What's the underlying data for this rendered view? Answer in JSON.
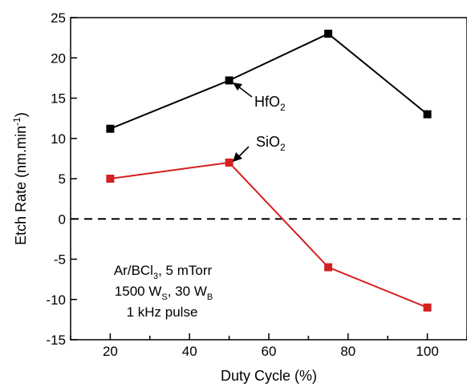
{
  "chart_data": {
    "type": "line",
    "xlabel": "Duty Cycle (%)",
    "ylabel_parts": [
      "Etch Rate (nm.min",
      "-1",
      ")"
    ],
    "xlim": [
      10,
      110
    ],
    "ylim": [
      -15,
      25
    ],
    "x_ticks": [
      20,
      40,
      60,
      80,
      100
    ],
    "y_ticks": [
      -15,
      -10,
      -5,
      0,
      5,
      10,
      15,
      20,
      25
    ],
    "grid": false,
    "series": [
      {
        "name_parts": [
          "HfO",
          "2"
        ],
        "color": "#000000",
        "marker": "square",
        "x": [
          20,
          50,
          75,
          100
        ],
        "y": [
          11.2,
          17.2,
          23.0,
          13.0
        ]
      },
      {
        "name_parts": [
          "SiO",
          "2"
        ],
        "color": "#d42020",
        "marker": "square",
        "x": [
          20,
          50,
          75,
          100
        ],
        "y": [
          5.0,
          7.0,
          -6.0,
          -11.0
        ]
      }
    ],
    "reference_line": {
      "y": 0,
      "style": "dashed",
      "color": "#000000"
    },
    "annotation": {
      "line1_parts": [
        "Ar/BCl",
        "3",
        ", 5 mTorr"
      ],
      "line2_parts": [
        "1500 W",
        "S",
        ", 30 W",
        "B"
      ],
      "line3": "1 kHz pulse"
    }
  }
}
